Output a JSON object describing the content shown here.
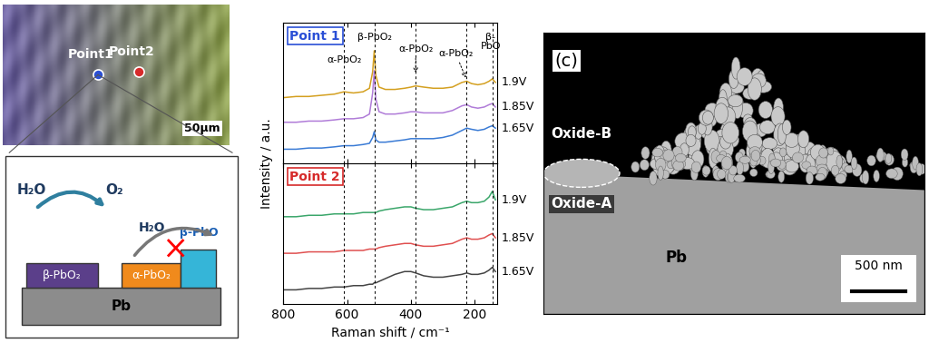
{
  "micrograph": {
    "points": [
      {
        "label": "Point1",
        "color": "#2a4fd6"
      },
      {
        "label": "Point2",
        "color": "#d62a2a"
      }
    ],
    "scale_bar": "50μm"
  },
  "schematic": {
    "reaction": {
      "reactant": "H₂O",
      "product": "O₂"
    },
    "blocked": {
      "reactant": "H₂O"
    },
    "layers": [
      {
        "label": "β-PbO₂",
        "color": "#5b3f8a"
      },
      {
        "label": "α-PbO₂",
        "color": "#f08a1c"
      },
      {
        "label": "β-PbO",
        "color": "#35b5d8"
      }
    ],
    "substrate": "Pb"
  },
  "chart_data": [
    {
      "type": "line",
      "title": "Point 1",
      "y_label": "Intensity / a.u.",
      "x": [
        800,
        760,
        720,
        680,
        640,
        610,
        580,
        550,
        530,
        520,
        515,
        510,
        500,
        480,
        450,
        420,
        400,
        385,
        360,
        330,
        300,
        270,
        240,
        225,
        210,
        190,
        170,
        155,
        145,
        135
      ],
      "series": [
        {
          "name": "1.9V",
          "color": "#d4a020",
          "values": [
            5.6,
            5.7,
            5.7,
            5.8,
            5.9,
            6.1,
            6.0,
            6.1,
            6.4,
            7.8,
            9.6,
            7.5,
            6.5,
            6.3,
            6.3,
            6.4,
            6.5,
            6.6,
            6.5,
            6.4,
            6.4,
            6.5,
            6.9,
            7.0,
            6.8,
            6.7,
            6.8,
            7.0,
            7.2,
            6.9
          ]
        },
        {
          "name": "1.85V",
          "color": "#b07cd8",
          "values": [
            3.5,
            3.5,
            3.6,
            3.6,
            3.7,
            3.8,
            3.8,
            3.9,
            4.2,
            6.0,
            7.9,
            5.5,
            4.4,
            4.2,
            4.2,
            4.3,
            4.4,
            4.4,
            4.3,
            4.3,
            4.3,
            4.5,
            4.9,
            5.0,
            4.8,
            4.7,
            4.8,
            5.0,
            5.1,
            4.8
          ]
        },
        {
          "name": "1.65V",
          "color": "#3a7bd5",
          "values": [
            1.2,
            1.2,
            1.3,
            1.3,
            1.4,
            1.5,
            1.5,
            1.6,
            1.7,
            2.2,
            2.7,
            2.0,
            1.8,
            1.8,
            1.9,
            2.0,
            2.1,
            2.1,
            2.1,
            2.1,
            2.2,
            2.4,
            2.8,
            3.0,
            2.9,
            2.8,
            2.9,
            3.1,
            3.2,
            3.0
          ]
        }
      ],
      "xlim": [
        800,
        130
      ],
      "xticks": [
        800,
        600,
        400,
        200
      ],
      "ylim": [
        0,
        12
      ],
      "yticks": [],
      "tick_labels": false,
      "reference_lines": [
        610,
        515,
        385,
        225,
        145
      ],
      "annotations": [
        {
          "text": "α-PbO₂",
          "x": 610
        },
        {
          "text": "β-PbO₂",
          "x": 515
        },
        {
          "text": "α-PbO₂",
          "x": 385
        },
        {
          "text": "α-PbO₂",
          "x": 225
        },
        {
          "text": "β-\nPbO",
          "x": 145
        }
      ]
    },
    {
      "type": "line",
      "title": "Point 2",
      "x_label": "Raman shift / cm⁻¹",
      "x": [
        800,
        760,
        720,
        680,
        640,
        610,
        580,
        550,
        530,
        520,
        515,
        510,
        500,
        480,
        450,
        420,
        400,
        385,
        360,
        330,
        300,
        270,
        240,
        225,
        210,
        190,
        170,
        155,
        145,
        135
      ],
      "series": [
        {
          "name": "1.9V",
          "color": "#3aa66a",
          "values": [
            6.2,
            6.2,
            6.3,
            6.3,
            6.4,
            6.4,
            6.4,
            6.5,
            6.5,
            6.5,
            6.5,
            6.5,
            6.6,
            6.7,
            6.8,
            6.9,
            6.9,
            6.8,
            6.7,
            6.7,
            6.8,
            6.9,
            7.2,
            7.3,
            7.2,
            7.2,
            7.3,
            7.6,
            8.0,
            7.4
          ]
        },
        {
          "name": "1.85V",
          "color": "#e05050",
          "values": [
            3.6,
            3.6,
            3.7,
            3.7,
            3.7,
            3.8,
            3.8,
            3.8,
            3.9,
            3.9,
            3.9,
            3.9,
            4.0,
            4.1,
            4.2,
            4.3,
            4.3,
            4.2,
            4.1,
            4.1,
            4.2,
            4.3,
            4.6,
            4.7,
            4.6,
            4.6,
            4.7,
            4.9,
            5.0,
            4.7
          ]
        },
        {
          "name": "1.65V",
          "color": "#444444",
          "values": [
            1.0,
            1.0,
            1.1,
            1.1,
            1.2,
            1.2,
            1.3,
            1.3,
            1.4,
            1.4,
            1.5,
            1.5,
            1.6,
            1.8,
            2.1,
            2.3,
            2.3,
            2.2,
            2.0,
            1.9,
            1.9,
            2.0,
            2.1,
            2.2,
            2.1,
            2.1,
            2.2,
            2.4,
            2.6,
            2.3
          ]
        }
      ],
      "xlim": [
        800,
        130
      ],
      "xticks": [
        800,
        600,
        400,
        200
      ],
      "ylim": [
        0,
        10
      ],
      "yticks": [],
      "tick_labels": "x",
      "reference_lines": [
        610,
        515,
        385,
        225,
        145
      ]
    }
  ],
  "sem": {
    "panel": "(c)",
    "labels": [
      "Oxide-B",
      "Oxide-A",
      "Pb"
    ],
    "scale_bar": "500 nm"
  }
}
